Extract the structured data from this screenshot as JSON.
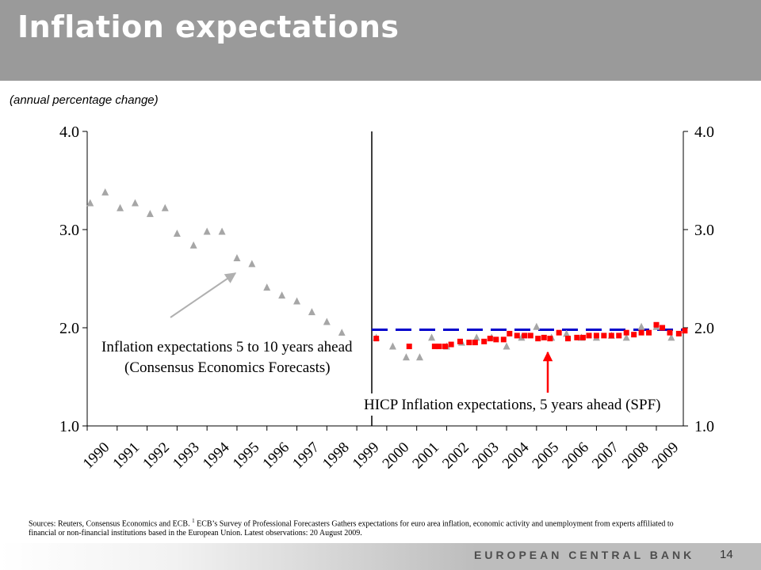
{
  "header": {
    "title": "Inflation expectations"
  },
  "subtitle": "(annual percentage change)",
  "sources": {
    "text_a": "Sources: Reuters, Consensus Economics and ECB.",
    "footnote_mark": "1",
    "text_b": "ECB’s Survey of Professional Forecasters Gathers expectations for euro area inflation, economic activity and unemployment from experts affiliated to financial or non-financial institutions based in the European Union. Latest observations: 20 August 2009."
  },
  "footer": {
    "bank_name": "EUROPEAN CENTRAL BANK",
    "page_number": "14"
  },
  "chart_data": {
    "type": "scatter",
    "xlim": [
      1990,
      2009.9
    ],
    "ylim": [
      1.0,
      4.0
    ],
    "y_ticks": [
      "1.0",
      "2.0",
      "3.0",
      "4.0"
    ],
    "x_tick_labels": [
      "1990",
      "1991",
      "1992",
      "1993",
      "1994",
      "1995",
      "1996",
      "1997",
      "1998",
      "1999",
      "2000",
      "2001",
      "2002",
      "2003",
      "2004",
      "2005",
      "2006",
      "2007",
      "2008",
      "2009"
    ],
    "divider_x": 1999.5,
    "reference_line_y": 1.98,
    "colors": {
      "consensus": "#a6a6a6",
      "spf": "#ff0000",
      "reference": "#0000cc",
      "arrow_gray": "#b0b0b0",
      "arrow_red": "#ff0000"
    },
    "annotations": {
      "consensus_line1": "Inflation expectations 5 to 10 years ahead",
      "consensus_line2": "(Consensus Economics Forecasts)",
      "spf_label": "HICP Inflation expectations, 5 years ahead (SPF)"
    },
    "series": [
      {
        "marker": "triangle",
        "x": [
          1990.1,
          1990.6,
          1991.1,
          1991.6,
          1992.1,
          1992.6,
          1993.0,
          1993.55,
          1994.0,
          1994.5,
          1995.0,
          1995.5,
          1996.0,
          1996.5,
          1997.0,
          1997.5,
          1998.0,
          1998.5,
          1999.65,
          2000.2,
          2000.65,
          2001.1,
          2001.5,
          2002.0,
          2002.5,
          2003.0,
          2003.5,
          2004.0,
          2004.5,
          2005.0,
          2005.5,
          2006.0,
          2006.5,
          2007.0,
          2007.5,
          2008.0,
          2008.5,
          2009.0,
          2009.5
        ],
        "y": [
          3.27,
          3.38,
          3.22,
          3.27,
          3.16,
          3.22,
          2.96,
          2.84,
          2.98,
          2.98,
          2.71,
          2.65,
          2.41,
          2.33,
          2.27,
          2.16,
          2.06,
          1.95,
          1.9,
          1.81,
          1.7,
          1.7,
          1.9,
          1.81,
          1.85,
          1.9,
          1.9,
          1.81,
          1.9,
          2.01,
          1.9,
          1.94,
          1.9,
          1.9,
          1.92,
          1.9,
          2.01,
          2.01,
          1.9
        ]
      },
      {
        "marker": "square",
        "x": [
          1999.65,
          2000.75,
          2001.6,
          2001.75,
          2001.95,
          2002.15,
          2002.45,
          2002.75,
          2002.95,
          2003.25,
          2003.45,
          2003.65,
          2003.9,
          2004.1,
          2004.35,
          2004.6,
          2004.8,
          2005.05,
          2005.25,
          2005.45,
          2005.75,
          2006.05,
          2006.35,
          2006.55,
          2006.75,
          2007.0,
          2007.25,
          2007.5,
          2007.75,
          2008.0,
          2008.25,
          2008.5,
          2008.75,
          2009.0,
          2009.2,
          2009.45,
          2009.75,
          2009.95
        ],
        "y": [
          1.89,
          1.81,
          1.81,
          1.81,
          1.81,
          1.83,
          1.86,
          1.85,
          1.85,
          1.86,
          1.89,
          1.88,
          1.88,
          1.94,
          1.92,
          1.92,
          1.92,
          1.89,
          1.9,
          1.89,
          1.95,
          1.89,
          1.9,
          1.9,
          1.92,
          1.92,
          1.92,
          1.92,
          1.92,
          1.95,
          1.93,
          1.95,
          1.95,
          2.03,
          2.0,
          1.95,
          1.94,
          1.97
        ]
      }
    ]
  }
}
